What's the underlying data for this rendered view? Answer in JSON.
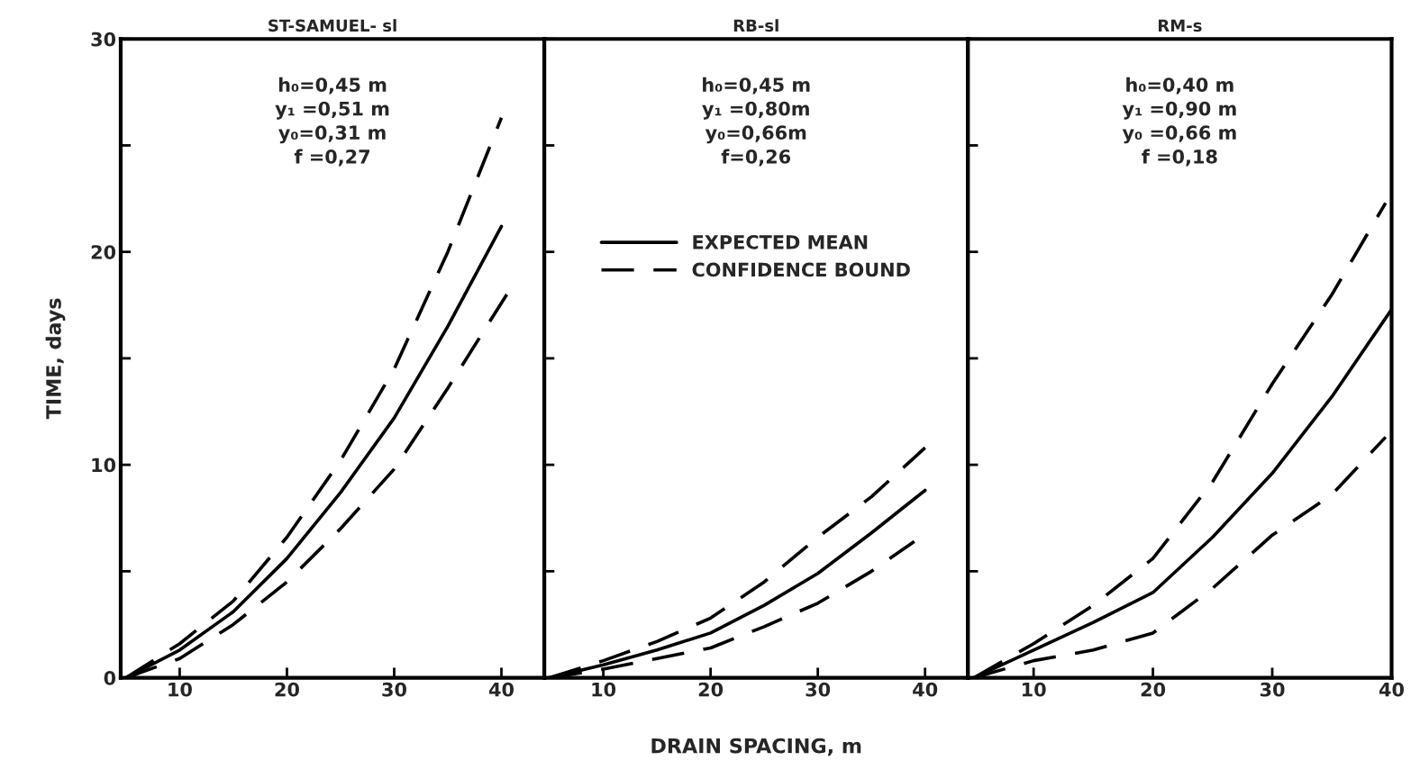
{
  "chart_data": [
    {
      "type": "line",
      "title": "ST-SAMUEL- sl",
      "ylabel": "TIME, days",
      "annotations": [
        "h₀=0,45 m\ny₁ =0,51 m\ny₀=0,31 m\nf =0,27"
      ],
      "xlim": [
        4.5,
        44
      ],
      "xticks": [
        10,
        20,
        30,
        40
      ],
      "ylim": [
        0,
        30
      ],
      "yticks": [
        0,
        {
          "value": 5,
          "label": null
        },
        10,
        {
          "value": 15,
          "label": null
        },
        20,
        {
          "value": 25,
          "label": null
        },
        30
      ],
      "grid": false,
      "legend": false,
      "series": [
        {
          "color": "#000000",
          "line_style": "dashed",
          "x": [
            5,
            10,
            15,
            20,
            25,
            30,
            35,
            40
          ],
          "values": [
            0,
            1.6,
            3.6,
            6.6,
            10.2,
            14.5,
            20.0,
            26.3
          ]
        },
        {
          "color": "#000000",
          "line_style": "solid",
          "x": [
            5,
            10,
            15,
            20,
            25,
            30,
            35,
            40
          ],
          "values": [
            0,
            1.3,
            3.1,
            5.6,
            8.7,
            12.2,
            16.5,
            21.2
          ]
        },
        {
          "color": "#000000",
          "line_style": "dashed",
          "x": [
            5,
            10,
            15,
            20,
            25,
            30,
            35,
            40.5
          ],
          "values": [
            0,
            0.9,
            2.5,
            4.5,
            7.0,
            9.8,
            13.6,
            18.0
          ]
        }
      ]
    },
    {
      "type": "line",
      "title": "RB-sl",
      "xlabel": "DRAIN SPACING, m",
      "annotations": [
        "h₀=0,45 m\ny₁ =0,80m\ny₀=0,66m\nf=0,26"
      ],
      "xlim": [
        4.5,
        44
      ],
      "xticks": [
        10,
        20,
        30,
        40
      ],
      "ylim": [
        0,
        30
      ],
      "yticks": [
        0,
        {
          "value": 5,
          "label": null
        },
        10,
        {
          "value": 15,
          "label": null
        },
        20,
        {
          "value": 25,
          "label": null
        },
        30
      ],
      "tick_labels": "x",
      "grid": false,
      "legend": "top",
      "series": [
        {
          "name": "EXPECTED MEAN",
          "color": "#000000",
          "line_style": "solid",
          "x": [
            5,
            10,
            15,
            20,
            25,
            30,
            35,
            40
          ],
          "values": [
            0,
            0.6,
            1.3,
            2.1,
            3.4,
            4.9,
            6.8,
            8.8
          ]
        },
        {
          "name": "CONFIDENCE BOUND",
          "color": "#000000",
          "line_style": "dashed",
          "x": [
            5,
            10,
            15,
            20,
            25,
            30,
            35,
            40
          ],
          "values": [
            0,
            0.8,
            1.7,
            2.8,
            4.5,
            6.6,
            8.5,
            10.8
          ]
        },
        {
          "color": "#000000",
          "line_style": "dashed",
          "x": [
            5,
            10,
            15,
            20,
            25,
            30,
            35,
            39
          ],
          "values": [
            0,
            0.4,
            0.9,
            1.4,
            2.4,
            3.5,
            5.0,
            6.4
          ]
        }
      ]
    },
    {
      "type": "line",
      "title": "RM-s",
      "annotations": [
        "h₀=0,40 m\ny₁ =0,90 m\ny₀ =0,66 m\nf =0,18"
      ],
      "xlim": [
        4.5,
        40
      ],
      "xticks": [
        10,
        20,
        30,
        40
      ],
      "ylim": [
        0,
        30
      ],
      "yticks": [
        0,
        {
          "value": 5,
          "label": null
        },
        10,
        {
          "value": 15,
          "label": null
        },
        20,
        {
          "value": 25,
          "label": null
        },
        30
      ],
      "tick_labels": "x",
      "grid": false,
      "legend": false,
      "series": [
        {
          "color": "#000000",
          "line_style": "dashed",
          "x": [
            5,
            10,
            15,
            20,
            25,
            30,
            35,
            39.5
          ],
          "values": [
            0,
            1.6,
            3.4,
            5.6,
            9.2,
            13.8,
            18.0,
            22.3
          ]
        },
        {
          "color": "#000000",
          "line_style": "solid",
          "x": [
            5,
            10,
            15,
            20,
            25,
            30,
            35,
            40
          ],
          "values": [
            0,
            1.3,
            2.6,
            4.0,
            6.6,
            9.6,
            13.2,
            17.3
          ]
        },
        {
          "color": "#000000",
          "line_style": "dashed",
          "x": [
            5,
            10,
            15,
            20,
            25,
            30,
            35,
            39.5
          ],
          "values": [
            0,
            0.8,
            1.3,
            2.1,
            4.2,
            6.7,
            8.6,
            11.3
          ]
        }
      ]
    }
  ]
}
